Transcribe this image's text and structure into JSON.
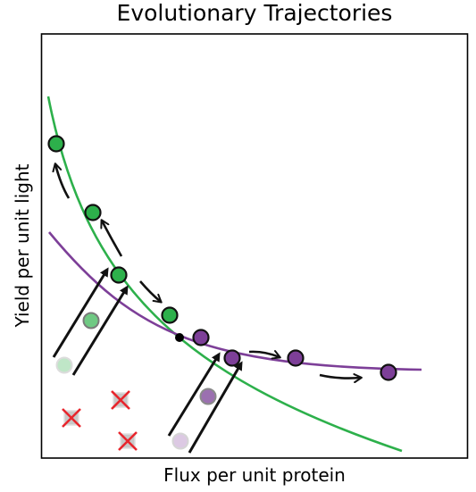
{
  "figure": {
    "title": "Evolutionary Trajectories",
    "xlabel": "Flux per unit protein",
    "ylabel": "Yield per unit light"
  },
  "colors": {
    "green": "#2db04b",
    "purple": "#7d3f98",
    "arrow": "#111111",
    "cross": "#e8262d",
    "ancestor_square": "#c8c8c8"
  }
}
